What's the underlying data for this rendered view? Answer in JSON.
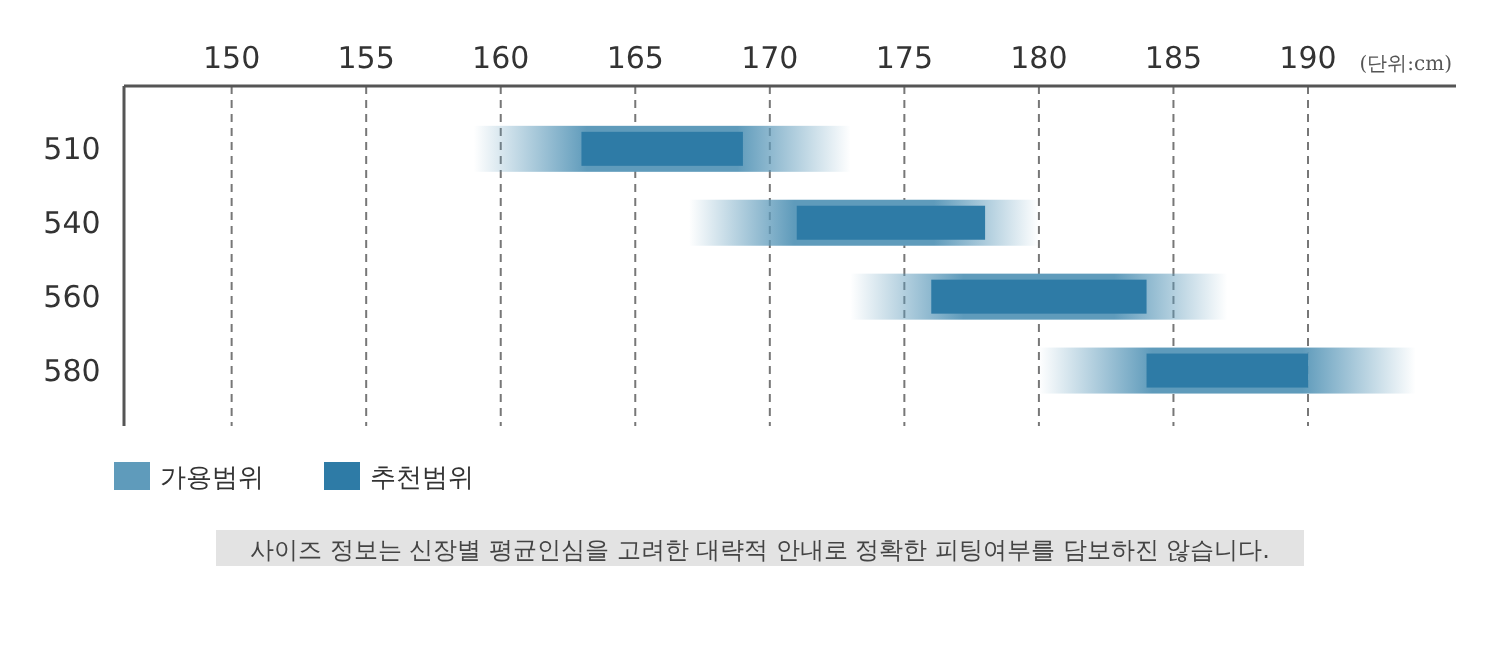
{
  "chart_data": {
    "type": "bar",
    "orientation": "horizontal",
    "categories": [
      "510",
      "540",
      "560",
      "580"
    ],
    "series": [
      {
        "name": "가용범위",
        "color": "#5f9bbb",
        "base": [
          159,
          167,
          173,
          180
        ],
        "values": [
          14,
          13,
          14,
          14
        ]
      },
      {
        "name": "추천범위",
        "color": "#2e7ba6",
        "base": [
          163,
          171,
          176,
          184
        ],
        "values": [
          6,
          7,
          8,
          6
        ]
      }
    ],
    "xlim": [
      146,
      195.5
    ],
    "xticks": [
      150,
      155,
      160,
      165,
      170,
      175,
      180,
      185,
      190
    ],
    "grid": "x",
    "legend": "bottom left",
    "annotations": [
      "(단위:cm)",
      "사이즈 정보는 신장별 평균인심을 고려한 대략적 안내로 정확한 피팅여부를 담보하진 않습니다."
    ]
  }
}
